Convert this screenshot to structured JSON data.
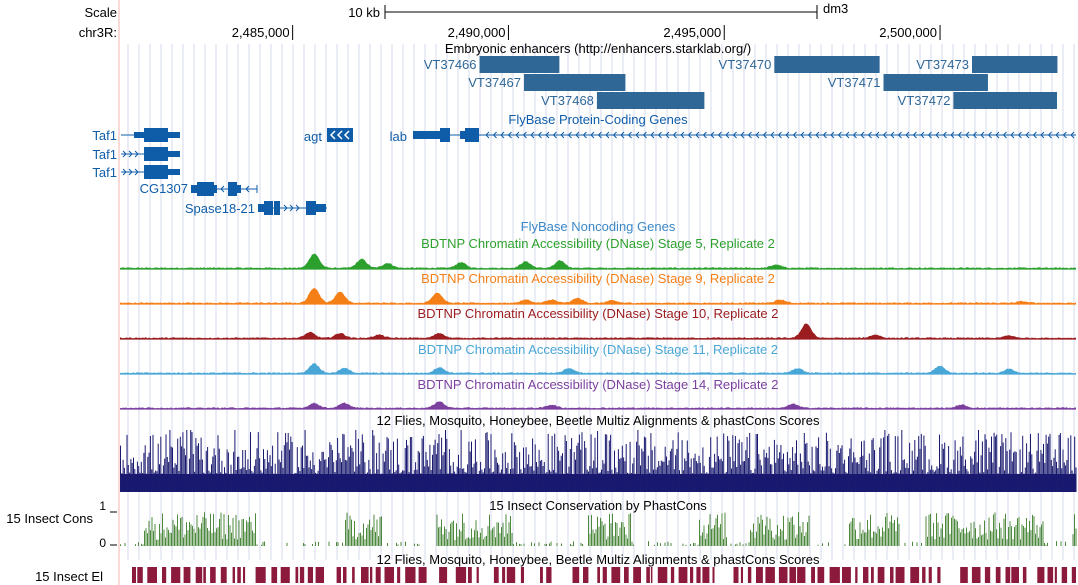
{
  "ruler": {
    "scale_label": "Scale",
    "chrom_label": "chr3R:",
    "scalebar_text": "10 kb",
    "assembly": "dm3",
    "ticks": [
      {
        "pos": 2485000,
        "label": "2,485,000"
      },
      {
        "pos": 2490000,
        "label": "2,490,000"
      },
      {
        "pos": 2495000,
        "label": "2,495,000"
      },
      {
        "pos": 2500000,
        "label": "2,500,000"
      }
    ]
  },
  "tracks": {
    "enhancers": {
      "title": "Embryonic enhancers (http://enhancers.starklab.org/)",
      "color": "#2f6797",
      "items": [
        {
          "name": "VT37466",
          "start": 2489330,
          "end": 2491180,
          "row": 0
        },
        {
          "name": "VT37470",
          "start": 2496160,
          "end": 2498600,
          "row": 0
        },
        {
          "name": "VT37473",
          "start": 2500740,
          "end": 2502720,
          "row": 0
        },
        {
          "name": "VT37467",
          "start": 2490360,
          "end": 2492710,
          "row": 1
        },
        {
          "name": "VT37471",
          "start": 2498690,
          "end": 2501110,
          "row": 1
        },
        {
          "name": "VT37468",
          "start": 2492050,
          "end": 2494540,
          "row": 2
        },
        {
          "name": "VT37472",
          "start": 2500310,
          "end": 2502710,
          "row": 2
        }
      ]
    },
    "genes": {
      "title": "FlyBase Protein-Coding Genes",
      "color": "#0f5da8",
      "labels": {
        "taf1": "Taf1",
        "agt": "agt",
        "lab": "lab",
        "cg1307": "CG1307",
        "spase": "Spase18-21"
      }
    },
    "noncoding": {
      "title": "FlyBase Noncoding Genes",
      "color": "#3b87c7"
    },
    "dnase": [
      {
        "title": "BDTNP Chromatin Accessibility (DNase) Stage 5, Replicate 2",
        "color": "#2ca02c",
        "peaks": [
          [
            2485500,
            0.9
          ],
          [
            2486600,
            0.55
          ],
          [
            2487200,
            0.3
          ],
          [
            2488900,
            0.35
          ],
          [
            2490400,
            0.4
          ],
          [
            2491200,
            0.45
          ],
          [
            2496200,
            0.2
          ]
        ]
      },
      {
        "title": "BDTNP Chromatin Accessibility (DNase) Stage 9, Replicate 2",
        "color": "#f57f17",
        "peaks": [
          [
            2485500,
            0.95
          ],
          [
            2486100,
            0.7
          ],
          [
            2488350,
            0.65
          ],
          [
            2490400,
            0.2
          ],
          [
            2491000,
            0.2
          ],
          [
            2491600,
            0.3
          ],
          [
            2492400,
            0.15
          ],
          [
            2496300,
            0.2
          ],
          [
            2501900,
            0.1
          ]
        ]
      },
      {
        "title": "BDTNP Chromatin Accessibility (DNase) Stage 10, Replicate 2",
        "color": "#9b1d20",
        "peaks": [
          [
            2485400,
            0.35
          ],
          [
            2486100,
            0.3
          ],
          [
            2487000,
            0.2
          ],
          [
            2488400,
            0.3
          ],
          [
            2496900,
            0.9
          ],
          [
            2498500,
            0.2
          ],
          [
            2501600,
            0.15
          ]
        ]
      },
      {
        "title": "BDTNP Chromatin Accessibility (DNase) Stage 11, Replicate 2",
        "color": "#48a7d6",
        "peaks": [
          [
            2485500,
            0.6
          ],
          [
            2486200,
            0.3
          ],
          [
            2488400,
            0.35
          ],
          [
            2491400,
            0.3
          ],
          [
            2496700,
            0.3
          ],
          [
            2500000,
            0.45
          ],
          [
            2501600,
            0.25
          ]
        ]
      },
      {
        "title": "BDTNP Chromatin Accessibility (DNase) Stage 14, Replicate 2",
        "color": "#7b3f9e",
        "peaks": [
          [
            2485500,
            0.3
          ],
          [
            2486200,
            0.3
          ],
          [
            2488400,
            0.4
          ],
          [
            2491000,
            0.2
          ],
          [
            2496600,
            0.25
          ],
          [
            2500500,
            0.2
          ]
        ]
      }
    ],
    "multiz": {
      "title": "12 Flies, Mosquito, Honeybee, Beetle Multiz Alignments & phastCons Scores",
      "color": "#191970"
    },
    "phastcons": {
      "left_label": "15 Insect Cons",
      "title": "15 Insect Conservation by PhastCons",
      "tick_max": "1",
      "tick_min": "0",
      "color": "#4e8a3e"
    },
    "elements": {
      "left_label": "15 Insect El",
      "title": "12 Flies, Mosquito, Honeybee, Beetle Multiz Alignments & phastCons Scores",
      "color": "#8b1a3c"
    }
  }
}
